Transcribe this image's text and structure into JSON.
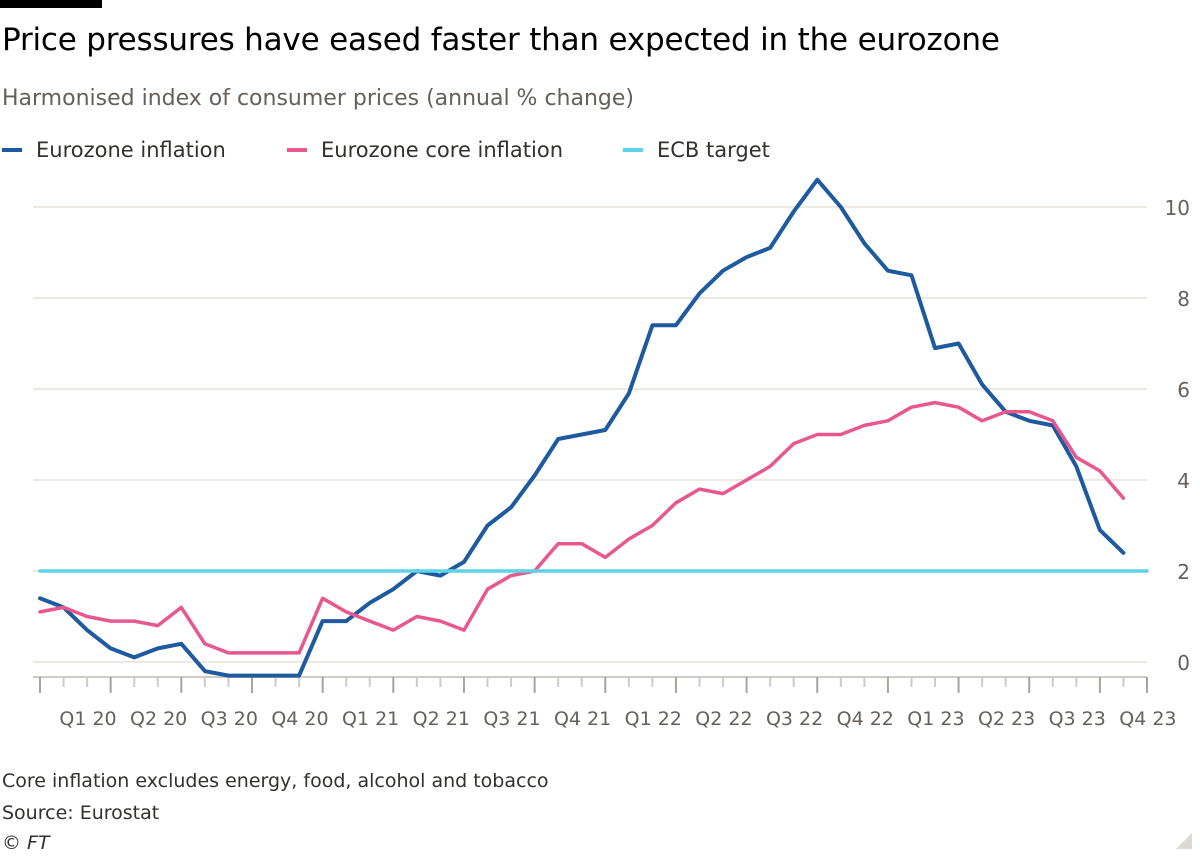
{
  "header": {
    "title": "Price pressures have eased faster than expected in the eurozone",
    "subtitle": "Harmonised index of consumer prices (annual % change)"
  },
  "legend": {
    "items": [
      {
        "label": "Eurozone inflation",
        "color": "#1d5aa0"
      },
      {
        "label": "Eurozone core inflation",
        "color": "#e8578e"
      },
      {
        "label": "ECB target",
        "color": "#5fd3e6"
      }
    ]
  },
  "footer": {
    "note": "Core inflation excludes energy, food, alcohol and tobacco",
    "source": "Source: Eurostat",
    "copyright": "© FT"
  },
  "chart_data": {
    "type": "line",
    "x_tick_labels": [
      "Q1 20",
      "Q2 20",
      "Q3 20",
      "Q4 20",
      "Q1 21",
      "Q2 21",
      "Q3 21",
      "Q4 21",
      "Q1 22",
      "Q2 22",
      "Q3 22",
      "Q4 22",
      "Q1 23",
      "Q2 23",
      "Q3 23",
      "Q4 23"
    ],
    "y_ticks": [
      0,
      2,
      4,
      6,
      8,
      10
    ],
    "ylim": [
      -0.5,
      10.5
    ],
    "y_axis_side": "right",
    "grid": true,
    "legend_position": "top-left",
    "x_period": "monthly, Jan 2020 – Dec 2023",
    "series": [
      {
        "name": "Eurozone inflation",
        "color": "#1d5aa0",
        "values": [
          1.4,
          1.2,
          0.7,
          0.3,
          0.1,
          0.3,
          0.4,
          -0.2,
          -0.3,
          -0.3,
          -0.3,
          -0.3,
          0.9,
          0.9,
          1.3,
          1.6,
          2.0,
          1.9,
          2.2,
          3.0,
          3.4,
          4.1,
          4.9,
          5.0,
          5.1,
          5.9,
          7.4,
          7.4,
          8.1,
          8.6,
          8.9,
          9.1,
          9.9,
          10.6,
          10.0,
          9.2,
          8.6,
          8.5,
          6.9,
          7.0,
          6.1,
          5.5,
          5.3,
          5.2,
          4.3,
          2.9,
          2.4
        ]
      },
      {
        "name": "Eurozone core inflation",
        "color": "#e8578e",
        "values": [
          1.1,
          1.2,
          1.0,
          0.9,
          0.9,
          0.8,
          1.2,
          0.4,
          0.2,
          0.2,
          0.2,
          0.2,
          1.4,
          1.1,
          0.9,
          0.7,
          1.0,
          0.9,
          0.7,
          1.6,
          1.9,
          2.0,
          2.6,
          2.6,
          2.3,
          2.7,
          3.0,
          3.5,
          3.8,
          3.7,
          4.0,
          4.3,
          4.8,
          5.0,
          5.0,
          5.2,
          5.3,
          5.6,
          5.7,
          5.6,
          5.3,
          5.5,
          5.5,
          5.3,
          4.5,
          4.2,
          3.6
        ]
      },
      {
        "name": "ECB target",
        "color": "#5fd3e6",
        "values": [
          2,
          2
        ]
      }
    ]
  }
}
